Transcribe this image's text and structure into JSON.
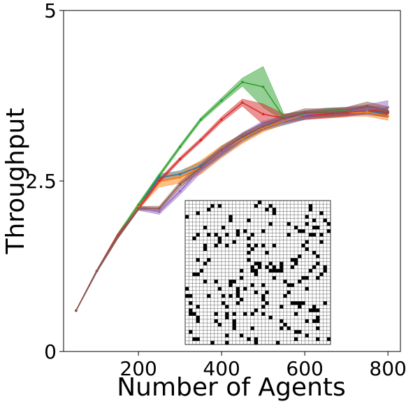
{
  "chart_data": {
    "type": "line",
    "title": "",
    "xlabel": "Number of Agents",
    "ylabel": "Throughput",
    "xlim": [
      20,
      830
    ],
    "ylim": [
      0,
      5
    ],
    "xticks": [
      200,
      400,
      600,
      800
    ],
    "xtick_labels": [
      "200",
      "400",
      "600",
      "800"
    ],
    "yticks": [
      0,
      2.5,
      5
    ],
    "ytick_labels": [
      "0",
      "2.5",
      "5"
    ],
    "grid": false,
    "legend": "none",
    "inset": "grid map (warehouse layout) in lower-right",
    "series": [
      {
        "color": "#1f77b4",
        "x": [
          50,
          100,
          150,
          200,
          250,
          300,
          350,
          400,
          450,
          500,
          550,
          600,
          650,
          700,
          750,
          800
        ],
        "y": [
          0.6,
          1.18,
          1.68,
          2.12,
          2.55,
          2.6,
          2.72,
          2.92,
          3.13,
          3.3,
          3.37,
          3.45,
          3.49,
          3.51,
          3.52,
          3.5
        ],
        "band": [
          0.01,
          0.02,
          0.03,
          0.03,
          0.05,
          0.05,
          0.06,
          0.06,
          0.06,
          0.06,
          0.05,
          0.05,
          0.05,
          0.05,
          0.05,
          0.06
        ]
      },
      {
        "color": "#ff7f0e",
        "x": [
          50,
          100,
          150,
          200,
          250,
          300,
          350,
          400,
          450,
          500,
          550,
          600,
          650,
          700,
          750,
          800
        ],
        "y": [
          0.6,
          1.18,
          1.68,
          2.12,
          2.49,
          2.55,
          2.7,
          2.93,
          3.12,
          3.28,
          3.38,
          3.46,
          3.48,
          3.5,
          3.51,
          3.45
        ],
        "band": [
          0.01,
          0.02,
          0.03,
          0.03,
          0.08,
          0.08,
          0.1,
          0.09,
          0.07,
          0.06,
          0.05,
          0.05,
          0.05,
          0.05,
          0.06,
          0.06
        ]
      },
      {
        "color": "#2ca02c",
        "x": [
          50,
          100,
          150,
          200,
          250,
          300,
          350,
          400,
          450,
          500,
          550,
          600,
          650,
          700,
          750,
          800
        ],
        "y": [
          0.6,
          1.18,
          1.7,
          2.15,
          2.58,
          3.0,
          3.4,
          3.68,
          3.95,
          3.88,
          3.43,
          3.48,
          3.52,
          3.53,
          3.55,
          3.5
        ],
        "band": [
          0.01,
          0.02,
          0.03,
          0.03,
          0.03,
          0.03,
          0.03,
          0.04,
          0.06,
          0.3,
          0.05,
          0.05,
          0.05,
          0.05,
          0.05,
          0.06
        ]
      },
      {
        "color": "#d62728",
        "x": [
          50,
          100,
          150,
          200,
          250,
          300,
          350,
          400,
          450,
          500,
          550,
          600,
          650,
          700,
          750,
          800
        ],
        "y": [
          0.6,
          1.18,
          1.7,
          2.1,
          2.5,
          2.82,
          3.1,
          3.4,
          3.65,
          3.48,
          3.42,
          3.46,
          3.48,
          3.5,
          3.55,
          3.5
        ],
        "band": [
          0.01,
          0.02,
          0.03,
          0.03,
          0.03,
          0.03,
          0.03,
          0.04,
          0.05,
          0.15,
          0.06,
          0.06,
          0.06,
          0.06,
          0.06,
          0.07
        ]
      },
      {
        "color": "#9467bd",
        "x": [
          50,
          100,
          150,
          200,
          250,
          300,
          350,
          400,
          450,
          500,
          550,
          600,
          650,
          700,
          750,
          800
        ],
        "y": [
          0.6,
          1.18,
          1.68,
          2.1,
          2.05,
          2.35,
          2.68,
          2.92,
          3.15,
          3.32,
          3.4,
          3.47,
          3.5,
          3.52,
          3.55,
          3.58
        ],
        "band": [
          0.01,
          0.02,
          0.03,
          0.03,
          0.04,
          0.05,
          0.06,
          0.06,
          0.06,
          0.06,
          0.06,
          0.06,
          0.06,
          0.06,
          0.07,
          0.1
        ]
      },
      {
        "color": "#8c564b",
        "x": [
          50,
          100,
          150,
          200,
          250,
          300,
          350,
          400,
          450,
          500,
          550,
          600,
          650,
          700,
          750,
          800
        ],
        "y": [
          0.6,
          1.18,
          1.68,
          2.1,
          2.1,
          2.45,
          2.7,
          2.95,
          3.15,
          3.3,
          3.42,
          3.5,
          3.5,
          3.52,
          3.6,
          3.52
        ],
        "band": [
          0.01,
          0.02,
          0.03,
          0.03,
          0.03,
          0.04,
          0.05,
          0.06,
          0.05,
          0.05,
          0.05,
          0.06,
          0.06,
          0.06,
          0.06,
          0.07
        ]
      }
    ]
  }
}
